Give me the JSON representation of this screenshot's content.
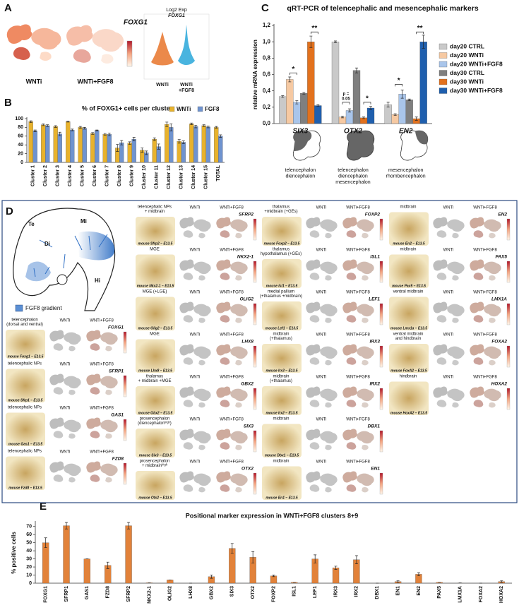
{
  "panel_labels": [
    "A",
    "B",
    "C",
    "D",
    "E"
  ],
  "panel_a": {
    "gene": "FOXG1",
    "umap_labels": [
      "WNTi",
      "WNTi+FGF8"
    ],
    "violin_title": [
      "Log2 Exp",
      "FOXG1"
    ],
    "violin_labels": [
      [
        "WNTi"
      ],
      [
        "WNTi",
        "+FGF8"
      ]
    ]
  },
  "chart_data": [
    {
      "type": "bar",
      "title": "% of FOXG1+ cells per cluster",
      "categories": [
        "Cluster 1",
        "Cluster 2",
        "Cluster 3",
        "Cluster 4",
        "Cluster 5",
        "Cluster 6",
        "Cluster 7",
        "Cluster 8",
        "Cluster 9",
        "Cluster 10",
        "Cluster 11",
        "Cluster 12",
        "Cluster 13",
        "Cluster 14",
        "Cluster 15",
        "TOTAL"
      ],
      "series": [
        {
          "name": "WNTi",
          "color": "#e8b22c",
          "values": [
            93,
            86,
            82,
            93,
            80,
            66,
            64,
            33,
            44,
            28,
            53,
            87,
            48,
            88,
            84,
            80
          ],
          "errors": [
            2,
            2,
            2,
            1,
            2,
            2,
            2,
            8,
            3,
            5,
            3,
            5,
            4,
            2,
            2,
            2
          ]
        },
        {
          "name": "FGF8",
          "color": "#6f93cf",
          "values": [
            72,
            84,
            65,
            74,
            78,
            73,
            64,
            45,
            53,
            22,
            36,
            80,
            46,
            82,
            81,
            60
          ],
          "errors": [
            2,
            2,
            4,
            2,
            2,
            1,
            3,
            5,
            4,
            4,
            6,
            8,
            3,
            3,
            2,
            3
          ]
        }
      ],
      "ylim": [
        0,
        100
      ],
      "yticks": [
        0,
        20,
        40,
        60,
        80,
        100
      ],
      "legend": "top-right"
    },
    {
      "type": "bar",
      "title": "qRT-PCR of telencephalic and mesencephalic markers",
      "y_label": "relative mRNA expression",
      "categories": [
        "SIX3",
        "OTX2",
        "EN2"
      ],
      "series": [
        {
          "name": "day20 CTRL",
          "color": "#c9c9c9",
          "values": [
            0.33,
            1.0,
            0.23
          ],
          "errors": [
            0.01,
            0.01,
            0.03
          ]
        },
        {
          "name": "day20 WNTi",
          "color": "#f6c9a2",
          "values": [
            0.54,
            0.08,
            0.11
          ],
          "errors": [
            0.03,
            0.01,
            0.01
          ]
        },
        {
          "name": "day20 WNTi+FGF8",
          "color": "#a9c5ea",
          "values": [
            0.26,
            0.16,
            0.36
          ],
          "errors": [
            0.02,
            0.02,
            0.05
          ]
        },
        {
          "name": "day30 CTRL",
          "color": "#7f7f7f",
          "values": [
            0.37,
            0.65,
            0.29
          ],
          "errors": [
            0.01,
            0.03,
            0.01
          ]
        },
        {
          "name": "day30 WNTi",
          "color": "#e2711d",
          "values": [
            1.0,
            0.07,
            0.06
          ],
          "errors": [
            0.07,
            0.01,
            0.02
          ]
        },
        {
          "name": "day30 WNTi+FGF8",
          "color": "#1f5fae",
          "values": [
            0.22,
            0.19,
            1.0
          ],
          "errors": [
            0.01,
            0.02,
            0.08
          ]
        }
      ],
      "ylim": [
        0,
        1.2
      ],
      "yticks": [
        {
          "value": 0,
          "label": "0,0"
        },
        {
          "value": 0.2,
          "label": "0,2"
        },
        {
          "value": 0.4,
          "label": "0,4"
        },
        {
          "value": 0.6,
          "label": "0,6"
        },
        {
          "value": 0.8,
          "label": "0,8"
        },
        {
          "value": 1.0,
          "label": "1,0"
        },
        {
          "value": 1.2,
          "label": "1,2"
        }
      ],
      "annotations": [
        [
          "*"
        ],
        [
          "**"
        ],
        [
          "p =",
          "0.05"
        ],
        [
          "*"
        ],
        [
          "*"
        ],
        [
          "**"
        ]
      ],
      "region_labels": [
        [
          "telencephalon",
          "diencephalon"
        ],
        [
          "telencephalon",
          "diencephalon",
          "mesencephalon"
        ],
        [
          "mesencephalon",
          "rhombencephalon"
        ]
      ],
      "legend": "right"
    },
    {
      "type": "bar",
      "title": "Positional marker expression in WNTi+FGF8 clusters 8+9",
      "y_label": "% positive cells",
      "color": "#e2823a",
      "categories": [
        "FOXG1",
        "SFRP1",
        "GAS1",
        "FZD8",
        "SFRP2",
        "NKX2-1",
        "OLIG2",
        "LHX8",
        "GBX2",
        "SIX3",
        "OTX2",
        "FOXP2",
        "ISL1",
        "LEF1",
        "IRX3",
        "IRX2",
        "DBX1",
        "EN1",
        "EN2",
        "PAX5",
        "LMX1A",
        "FOXA2",
        "HOXA2"
      ],
      "values": [
        50,
        71,
        30,
        22,
        71,
        0.5,
        4,
        0,
        8,
        43,
        32,
        9,
        1,
        30,
        19,
        29,
        0,
        2,
        11,
        1,
        0.3,
        0,
        2
      ],
      "errors": [
        6,
        4,
        0,
        4,
        4,
        0,
        0,
        0,
        2,
        6,
        7,
        1,
        0,
        5,
        2,
        5,
        0,
        1,
        2,
        0,
        0,
        0,
        1
      ],
      "ylim": [
        0,
        75
      ],
      "yticks": [
        0,
        10,
        20,
        30,
        40,
        50,
        60,
        70
      ]
    }
  ],
  "panel_d": {
    "schematic": {
      "regions": [
        "Te",
        "Di",
        "Mi",
        "Hi"
      ],
      "legend": "FGF8 gradient"
    },
    "conditions": [
      "WNTi",
      "WNTi+FGF8"
    ],
    "columns": [
      [
        {
          "label": [
            "telencephalon",
            "(dorsal and ventral)"
          ],
          "gene": "FOXG1",
          "caption": "mouse Foxg1 – E13.5"
        },
        {
          "label": [
            "telencephalic NPs"
          ],
          "gene": "SFRP1",
          "caption": "mouse Sfrp1 – E13.5"
        },
        {
          "label": [
            "telencephalic NPs"
          ],
          "gene": "GAS1",
          "caption": "mouse Gas1 – E13.5"
        },
        {
          "label": [
            "telencephalic NPs"
          ],
          "gene": "FZD8",
          "caption": "mouse Fzd8 – E13.5"
        }
      ],
      [
        {
          "label": [
            "telencephalic NPs",
            "+ midbrain"
          ],
          "gene": "SFRP2",
          "caption": "mouse Sfrp2 – E13.5"
        },
        {
          "label": [
            "MGE"
          ],
          "gene": "NKX2-1",
          "caption": "mouse Nkx2-1 – E13.5"
        },
        {
          "label": [
            "MGE (+LGE)"
          ],
          "gene": "OLIG2",
          "caption": "mouse Olig2 – E13.5"
        },
        {
          "label": [
            "MGE"
          ],
          "gene": "LHX8",
          "caption": "mouse Lhx8 – E13.5"
        },
        {
          "label": [
            "thalamus",
            "+ midbrain +MGE"
          ],
          "gene": "GBX2",
          "caption": "mouse Gbx2 – E13.5"
        },
        {
          "label": [
            "prosencephalon",
            "(diencephalonʰⁱᵍʰ)"
          ],
          "gene": "SIX3",
          "caption": "mouse Six3 – E13.5"
        },
        {
          "label": [
            "prosencephalon",
            "+ midbrainʰⁱᵍʰ"
          ],
          "gene": "OTX2",
          "caption": "mouse Otx2 – E13.5"
        }
      ],
      [
        {
          "label": [
            "thalamus",
            "+midbrain (+GEs)"
          ],
          "gene": "FOXP2",
          "caption": "mouse Foxp2 – E13.5"
        },
        {
          "label": [
            "thalamus",
            "hypothalamus (+GEs)"
          ],
          "gene": "ISL1",
          "caption": "mouse Isl1 – E13.5"
        },
        {
          "label": [
            "medial pallium",
            "(+thalamus +midbrain)"
          ],
          "gene": "LEF1",
          "caption": "mouse Lef1 – E13.5"
        },
        {
          "label": [
            "midbrain",
            "(+thalamus)"
          ],
          "gene": "IRX3",
          "caption": "mouse Irx3 – E13.5"
        },
        {
          "label": [
            "midbrain",
            "(+thalamus)"
          ],
          "gene": "IRX2",
          "caption": "mouse Irx2 – E13.5"
        },
        {
          "label": [
            "midbrain"
          ],
          "gene": "DBX1",
          "caption": "mouse Dbx1 – E13.5"
        },
        {
          "label": [
            "midbrain"
          ],
          "gene": "EN1",
          "caption": "mouse En1 – E13.5"
        }
      ],
      [
        {
          "label": [
            "midbrain"
          ],
          "gene": "EN2",
          "caption": "mouse En2 – E13.5"
        },
        {
          "label": [
            "midbrain"
          ],
          "gene": "PAX5",
          "caption": "mouse Pax5 – E13.5"
        },
        {
          "label": [
            "ventral midbrain"
          ],
          "gene": "LMX1A",
          "caption": "mouse Lmx1a – E13.5"
        },
        {
          "label": [
            "ventral midbrain",
            "and hindbrain"
          ],
          "gene": "FOXA2",
          "caption": "mouse FoxA2 – E13.5"
        },
        {
          "label": [
            "hindbrain"
          ],
          "gene": "HOXA2",
          "caption": "mouse HoxA2 – E13.5"
        }
      ]
    ]
  }
}
